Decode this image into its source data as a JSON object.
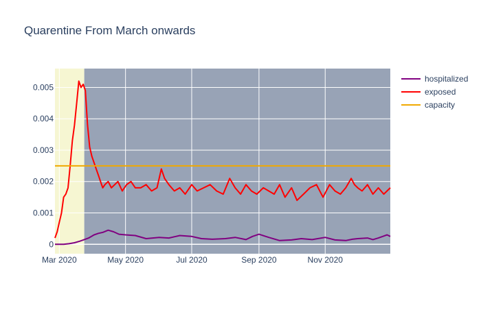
{
  "chart_data": {
    "type": "line",
    "title": "Quarentine From March onwards",
    "xlabel": "",
    "ylabel": "",
    "x_range": [
      "2020-02-26",
      "2020-12-31"
    ],
    "ylim": [
      -0.0003,
      0.0056
    ],
    "x_ticks": [
      {
        "date": "2020-03-01",
        "label": "Mar 2020"
      },
      {
        "date": "2020-05-01",
        "label": "May 2020"
      },
      {
        "date": "2020-07-01",
        "label": "Jul 2020"
      },
      {
        "date": "2020-09-01",
        "label": "Sep 2020"
      },
      {
        "date": "2020-11-01",
        "label": "Nov 2020"
      }
    ],
    "y_ticks": [
      {
        "value": 0,
        "label": "0"
      },
      {
        "value": 0.001,
        "label": "0.001"
      },
      {
        "value": 0.002,
        "label": "0.002"
      },
      {
        "value": 0.003,
        "label": "0.003"
      },
      {
        "value": 0.004,
        "label": "0.004"
      },
      {
        "value": 0.005,
        "label": "0.005"
      }
    ],
    "grid": true,
    "legend_position": "top-right",
    "shaded_regions": [
      {
        "start": "2020-02-26",
        "end": "2020-03-24",
        "color": "#f6f6d2"
      },
      {
        "start": "2020-03-24",
        "end": "2020-12-31",
        "color": "#98a3b6"
      }
    ],
    "series": [
      {
        "name": "hospitalized",
        "color": "#800080",
        "x": [
          "2020-02-26",
          "2020-03-05",
          "2020-03-10",
          "2020-03-15",
          "2020-03-20",
          "2020-03-24",
          "2020-03-28",
          "2020-04-02",
          "2020-04-06",
          "2020-04-10",
          "2020-04-15",
          "2020-04-20",
          "2020-04-25",
          "2020-05-01",
          "2020-05-10",
          "2020-05-20",
          "2020-06-01",
          "2020-06-10",
          "2020-06-20",
          "2020-07-01",
          "2020-07-10",
          "2020-07-20",
          "2020-08-01",
          "2020-08-10",
          "2020-08-20",
          "2020-08-26",
          "2020-09-01",
          "2020-09-10",
          "2020-09-20",
          "2020-10-01",
          "2020-10-10",
          "2020-10-20",
          "2020-11-01",
          "2020-11-10",
          "2020-11-20",
          "2020-11-26",
          "2020-12-01",
          "2020-12-10",
          "2020-12-15",
          "2020-12-20",
          "2020-12-24",
          "2020-12-28",
          "2020-12-31"
        ],
        "y": [
          0.0,
          0.0,
          2e-05,
          5e-05,
          0.0001,
          0.00015,
          0.0002,
          0.0003,
          0.00035,
          0.00038,
          0.00045,
          0.0004,
          0.00032,
          0.0003,
          0.00028,
          0.00018,
          0.00022,
          0.0002,
          0.00028,
          0.00025,
          0.00018,
          0.00016,
          0.00018,
          0.00022,
          0.00015,
          0.00025,
          0.00032,
          0.00022,
          0.00012,
          0.00014,
          0.00018,
          0.00015,
          0.00022,
          0.00014,
          0.00012,
          0.00016,
          0.00018,
          0.0002,
          0.00015,
          0.0002,
          0.00025,
          0.0003,
          0.00025
        ]
      },
      {
        "name": "exposed",
        "color": "#ff0000",
        "x": [
          "2020-02-26",
          "2020-02-28",
          "2020-03-01",
          "2020-03-03",
          "2020-03-05",
          "2020-03-07",
          "2020-03-09",
          "2020-03-11",
          "2020-03-13",
          "2020-03-15",
          "2020-03-17",
          "2020-03-19",
          "2020-03-21",
          "2020-03-23",
          "2020-03-25",
          "2020-03-27",
          "2020-03-29",
          "2020-03-31",
          "2020-04-02",
          "2020-04-04",
          "2020-04-06",
          "2020-04-08",
          "2020-04-10",
          "2020-04-12",
          "2020-04-15",
          "2020-04-18",
          "2020-04-21",
          "2020-04-24",
          "2020-04-28",
          "2020-05-02",
          "2020-05-06",
          "2020-05-10",
          "2020-05-15",
          "2020-05-20",
          "2020-05-25",
          "2020-05-30",
          "2020-06-03",
          "2020-06-06",
          "2020-06-10",
          "2020-06-15",
          "2020-06-20",
          "2020-06-25",
          "2020-07-01",
          "2020-07-06",
          "2020-07-12",
          "2020-07-18",
          "2020-07-24",
          "2020-07-30",
          "2020-08-05",
          "2020-08-10",
          "2020-08-15",
          "2020-08-20",
          "2020-08-25",
          "2020-08-30",
          "2020-09-05",
          "2020-09-10",
          "2020-09-15",
          "2020-09-20",
          "2020-09-25",
          "2020-10-01",
          "2020-10-06",
          "2020-10-12",
          "2020-10-18",
          "2020-10-24",
          "2020-10-30",
          "2020-11-05",
          "2020-11-10",
          "2020-11-15",
          "2020-11-20",
          "2020-11-25",
          "2020-11-28",
          "2020-12-01",
          "2020-12-05",
          "2020-12-10",
          "2020-12-15",
          "2020-12-20",
          "2020-12-25",
          "2020-12-31"
        ],
        "y": [
          0.0002,
          0.0004,
          0.0007,
          0.001,
          0.0015,
          0.0016,
          0.0018,
          0.0025,
          0.0033,
          0.0038,
          0.0045,
          0.0052,
          0.005,
          0.0051,
          0.0049,
          0.0038,
          0.0031,
          0.0028,
          0.0026,
          0.0024,
          0.0022,
          0.002,
          0.0018,
          0.0019,
          0.002,
          0.0018,
          0.0019,
          0.002,
          0.0017,
          0.0019,
          0.002,
          0.0018,
          0.0018,
          0.0019,
          0.0017,
          0.0018,
          0.0024,
          0.0021,
          0.0019,
          0.0017,
          0.0018,
          0.0016,
          0.0019,
          0.0017,
          0.0018,
          0.0019,
          0.0017,
          0.0016,
          0.0021,
          0.0018,
          0.0016,
          0.0019,
          0.0017,
          0.0016,
          0.0018,
          0.0017,
          0.0016,
          0.0019,
          0.0015,
          0.0018,
          0.0014,
          0.0016,
          0.0018,
          0.0019,
          0.0015,
          0.0019,
          0.0017,
          0.0016,
          0.0018,
          0.0021,
          0.0019,
          0.0018,
          0.0017,
          0.0019,
          0.0016,
          0.0018,
          0.0016,
          0.0018
        ]
      },
      {
        "name": "capacity",
        "color": "#f0a800",
        "x": [
          "2020-02-26",
          "2020-12-31"
        ],
        "y": [
          0.0025,
          0.0025
        ]
      }
    ]
  }
}
